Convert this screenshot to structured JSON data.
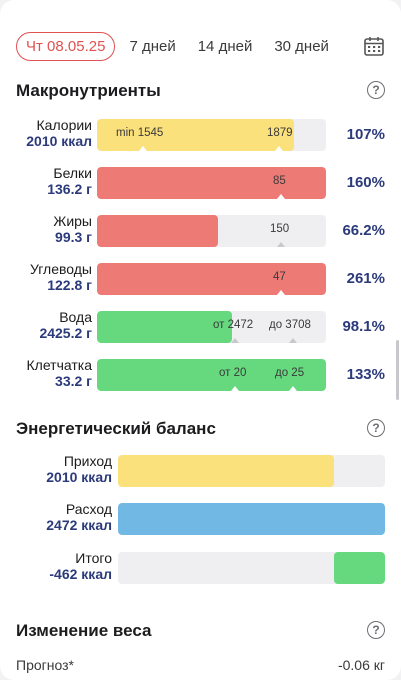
{
  "tabs": [
    {
      "label": "Чт 08.05.25",
      "active": true
    },
    {
      "label": "7 дней"
    },
    {
      "label": "14 дней"
    },
    {
      "label": "30 дней"
    }
  ],
  "macros": {
    "title": "Макронутриенты",
    "help": "?",
    "rows": [
      {
        "name": "Калории",
        "value": "2010 ккал",
        "percent": "107%",
        "fill": 0.86,
        "color": "#fae17c",
        "mark_left": "min 1545",
        "mark_right": "1879"
      },
      {
        "name": "Белки",
        "value": "136.2 г",
        "percent": "160%",
        "fill": 1.0,
        "color": "#ee7a76",
        "mark_right": "85"
      },
      {
        "name": "Жиры",
        "value": "99.3 г",
        "percent": "66.2%",
        "fill": 0.53,
        "color": "#ee7a76",
        "mark_right": "150"
      },
      {
        "name": "Углеводы",
        "value": "122.8 г",
        "percent": "261%",
        "fill": 1.0,
        "color": "#ee7a76",
        "mark_right": "47"
      },
      {
        "name": "Вода",
        "value": "2425.2 г",
        "percent": "98.1%",
        "fill": 0.59,
        "color": "#66d97f",
        "mark_left": "от 2472",
        "mark_right": "до 3708"
      },
      {
        "name": "Клетчатка",
        "value": "33.2 г",
        "percent": "133%",
        "fill": 1.0,
        "color": "#66d97f",
        "mark_left": "от 20",
        "mark_right": "до 25"
      }
    ]
  },
  "energy": {
    "title": "Энергетический баланс",
    "help": "?",
    "rows": [
      {
        "name": "Приход",
        "value": "2010 ккал",
        "fill": 0.81,
        "color": "#fae17c"
      },
      {
        "name": "Расход",
        "value": "2472 ккал",
        "fill": 1.0,
        "color": "#72b8e4"
      },
      {
        "name": "Итого",
        "value": "-462 ккал",
        "fill": 0.19,
        "color": "#66d97f",
        "align": "right"
      }
    ]
  },
  "weight": {
    "title": "Изменение веса",
    "help": "?",
    "forecast_label": "Прогноз*",
    "forecast_value": "-0.06 кг"
  }
}
